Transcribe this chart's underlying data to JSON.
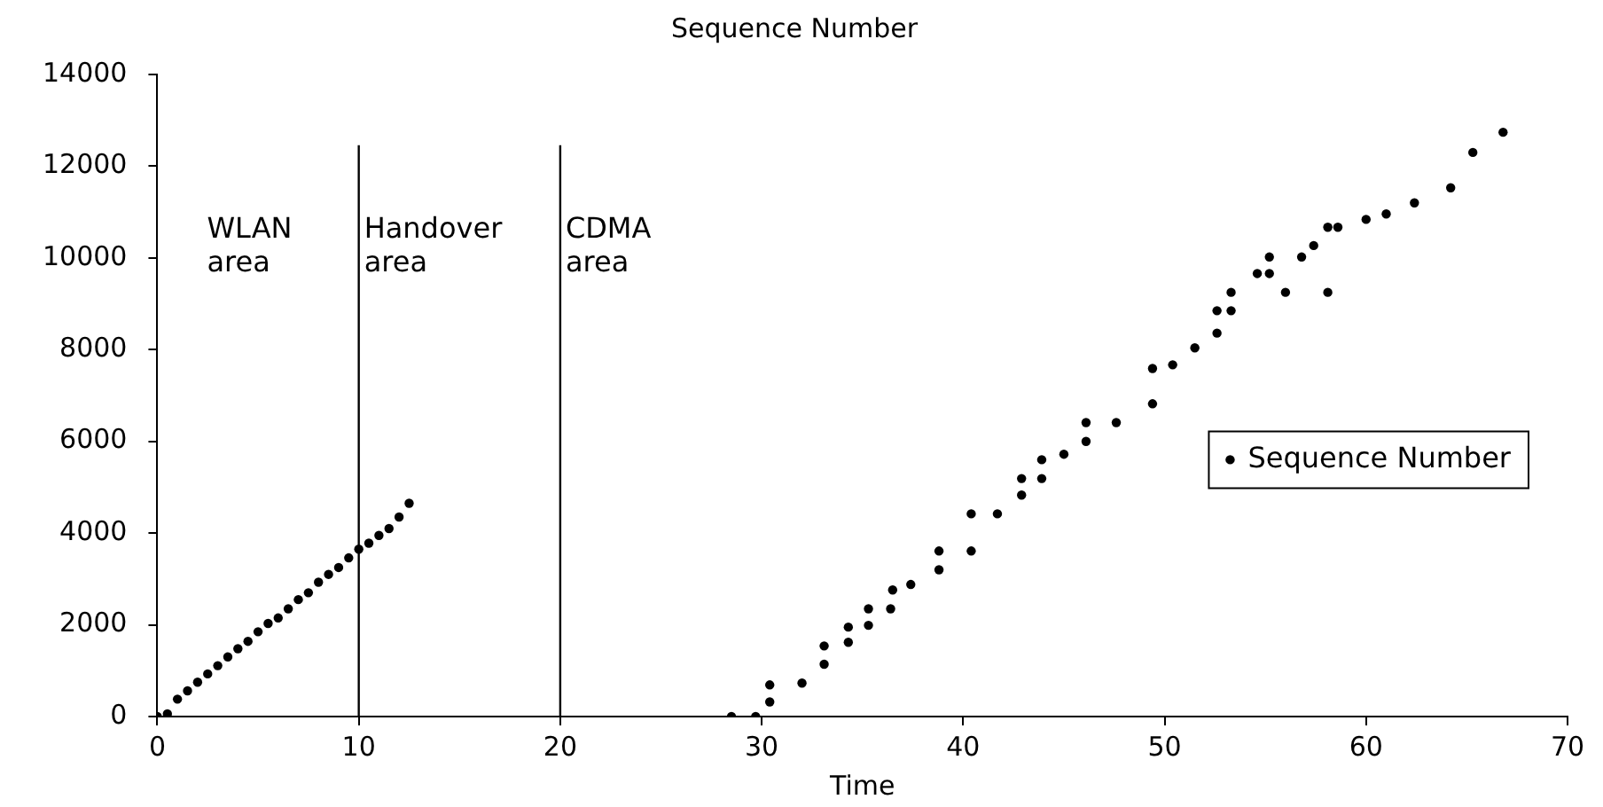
{
  "chart_data": {
    "type": "scatter",
    "title": "Sequence Number",
    "xlabel": "Time",
    "xlim": [
      0,
      70
    ],
    "xticks": [
      0,
      10,
      20,
      30,
      40,
      50,
      60,
      70
    ],
    "ylim": [
      0,
      14000
    ],
    "yticks": [
      0,
      2000,
      4000,
      6000,
      8000,
      10000,
      12000,
      14000
    ],
    "grid": false,
    "legend": "right",
    "marker": "circle",
    "series": [
      {
        "name": "Sequence Number",
        "color": "#000000",
        "x": [
          0,
          0.5,
          1.0,
          1.5,
          2.0,
          2.5,
          3.0,
          3.5,
          4.0,
          4.5,
          5.0,
          5.5,
          6.0,
          6.5,
          7.0,
          7.5,
          8.0,
          8.5,
          9.0,
          9.5,
          10.0,
          10.5,
          11.0,
          11.5,
          12.0,
          12.5,
          28.5,
          29.7,
          30.4,
          30.4,
          32.0,
          33.1,
          33.1,
          34.3,
          34.3,
          35.3,
          35.3,
          36.4,
          36.5,
          37.4,
          38.8,
          38.8,
          40.4,
          40.4,
          41.7,
          42.9,
          42.9,
          43.9,
          43.9,
          45.0,
          46.1,
          46.1,
          47.6,
          49.4,
          49.4,
          50.4,
          51.5,
          52.6,
          52.6,
          53.3,
          53.3,
          54.6,
          55.2,
          55.2,
          56.0,
          56.8,
          57.4,
          58.1,
          58.1,
          58.6,
          60.0,
          61.0,
          62.4,
          64.2,
          65.3,
          66.8
        ],
        "values": [
          0,
          60,
          380,
          560,
          750,
          930,
          1110,
          1300,
          1480,
          1640,
          1850,
          2030,
          2150,
          2350,
          2550,
          2700,
          2930,
          3100,
          3250,
          3460,
          3650,
          3780,
          3950,
          4100,
          4350,
          4650,
          0,
          0,
          320,
          690,
          730,
          1140,
          1540,
          1620,
          1950,
          1990,
          2350,
          2350,
          2760,
          2880,
          3200,
          3610,
          3610,
          4420,
          4420,
          4830,
          5190,
          5190,
          5600,
          5720,
          6000,
          6410,
          6410,
          6820,
          7590,
          7670,
          8040,
          8360,
          8850,
          8850,
          9250,
          9660,
          9660,
          10020,
          9250,
          10020,
          10270,
          9250,
          10670,
          10670,
          10840,
          10960,
          11200,
          11530,
          12300,
          12740
        ]
      }
    ],
    "ref_lines": [
      {
        "axis": "x",
        "value": 10,
        "color": "#000000",
        "line_style": "solid"
      },
      {
        "axis": "x",
        "value": 20,
        "color": "#000000",
        "line_style": "solid"
      }
    ],
    "annotations": [
      "WLAN\narea",
      "Handover\narea",
      "CDMA\narea"
    ]
  }
}
